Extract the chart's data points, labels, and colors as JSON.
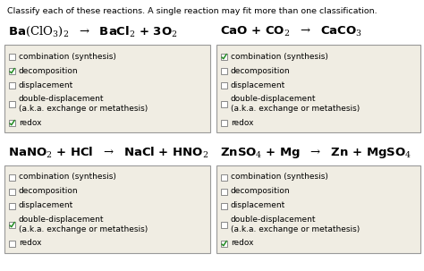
{
  "title": "Classify each of these reactions. A single reaction may fit more than one classification.",
  "bg_color": "#f0ede3",
  "box_edge": "#999999",
  "reactions": [
    {
      "eq_parts": [
        [
          "Ba(ClO",
          "3",
          ")$_2$  →  BaCl",
          "2",
          " + 3O",
          "2",
          ""
        ]
      ],
      "eq_text": "Ba$\\left(\\mathrm{ClO_3}\\right)_2$  $\\rightarrow$  BaCl$_2$ + 3O$_2$",
      "checks": [
        false,
        true,
        false,
        false,
        true
      ],
      "col": 0,
      "row": 0
    },
    {
      "eq_text": "CaO + CO$_2$  $\\rightarrow$  CaCO$_3$",
      "checks": [
        true,
        false,
        false,
        false,
        false
      ],
      "col": 1,
      "row": 0
    },
    {
      "eq_text": "NaNO$_2$ + HCl  $\\rightarrow$  NaCl + HNO$_2$",
      "checks": [
        false,
        false,
        false,
        true,
        false
      ],
      "col": 0,
      "row": 1
    },
    {
      "eq_text": "ZnSO$_4$ + Mg  $\\rightarrow$  Zn + MgSO$_4$",
      "checks": [
        false,
        false,
        false,
        false,
        true
      ],
      "col": 1,
      "row": 1
    }
  ],
  "options": [
    [
      "combination (synthesis)"
    ],
    [
      "decomposition"
    ],
    [
      "displacement"
    ],
    [
      "double-displacement",
      "(a.k.a. exchange or metathesis)"
    ],
    [
      "redox"
    ]
  ],
  "title_fontsize": 6.8,
  "eq_fontsize": 9.5,
  "opt_fontsize": 6.5
}
